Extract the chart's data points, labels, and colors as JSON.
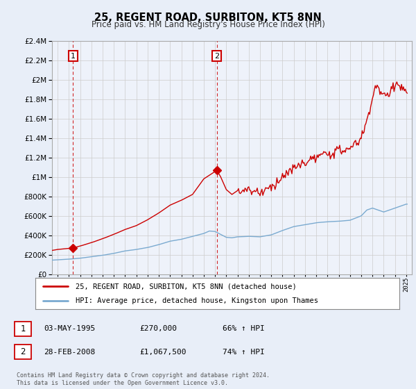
{
  "title": "25, REGENT ROAD, SURBITON, KT5 8NN",
  "subtitle": "Price paid vs. HM Land Registry's House Price Index (HPI)",
  "legend_line1": "25, REGENT ROAD, SURBITON, KT5 8NN (detached house)",
  "legend_line2": "HPI: Average price, detached house, Kingston upon Thames",
  "annotation1_date": "03-MAY-1995",
  "annotation1_price": "£270,000",
  "annotation1_hpi": "66% ↑ HPI",
  "annotation2_date": "28-FEB-2008",
  "annotation2_price": "£1,067,500",
  "annotation2_hpi": "74% ↑ HPI",
  "transaction1_year": 1995.37,
  "transaction1_value": 270000,
  "transaction2_year": 2008.16,
  "transaction2_value": 1067500,
  "footer": "Contains HM Land Registry data © Crown copyright and database right 2024.\nThis data is licensed under the Open Government Licence v3.0.",
  "line_color_price": "#cc0000",
  "line_color_hpi": "#7aaad0",
  "bg_color": "#e8eef8",
  "hatch_color": "#c8d4e8",
  "grid_color": "#cccccc",
  "ylim": [
    0,
    2400000
  ],
  "xlim_start": 1993.5,
  "xlim_end": 2025.5
}
